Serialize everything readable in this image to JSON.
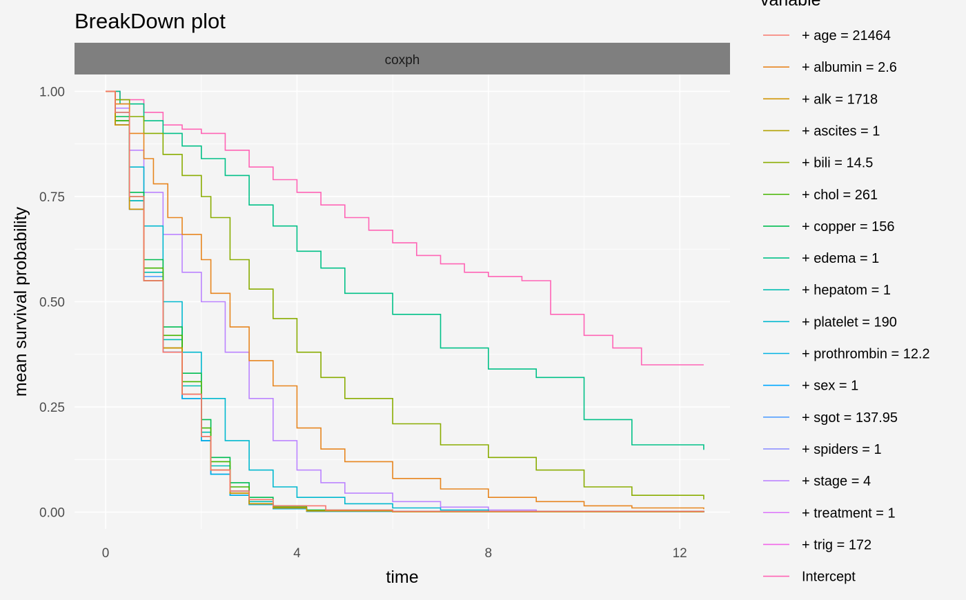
{
  "chart_data": {
    "type": "line",
    "title": "BreakDown plot",
    "facet_label": "coxph",
    "xlabel": "time",
    "ylabel": "mean survival probability",
    "xlim": [
      -0.65,
      13.05
    ],
    "ylim": [
      -0.04,
      1.04
    ],
    "x_ticks": [
      0,
      4,
      8,
      12
    ],
    "x_tick_labels": [
      "0",
      "4",
      "8",
      "12"
    ],
    "y_ticks": [
      0,
      0.25,
      0.5,
      0.75,
      1
    ],
    "y_tick_labels": [
      "0.00",
      "0.25",
      "0.50",
      "0.75",
      "1.00"
    ],
    "grid": true,
    "legend": {
      "title": "variable",
      "position": "right"
    },
    "series": [
      {
        "name": "+ age = 21464",
        "color": "#F8766D",
        "points": [
          [
            0,
            1
          ],
          [
            0.2,
            0.95
          ],
          [
            0.5,
            0.75
          ],
          [
            0.8,
            0.55
          ],
          [
            1.2,
            0.38
          ],
          [
            1.6,
            0.28
          ],
          [
            2.0,
            0.18
          ],
          [
            2.2,
            0.1
          ],
          [
            2.6,
            0.05
          ],
          [
            3.0,
            0.03
          ],
          [
            3.5,
            0.015
          ],
          [
            4.6,
            0.005
          ],
          [
            6.0,
            0.002
          ],
          [
            12.5,
            0
          ]
        ]
      },
      {
        "name": "+ albumin = 2.6",
        "color": "#E7851E",
        "points": [
          [
            0,
            1
          ],
          [
            0.2,
            0.97
          ],
          [
            0.5,
            0.9
          ],
          [
            0.8,
            0.84
          ],
          [
            1.0,
            0.78
          ],
          [
            1.3,
            0.7
          ],
          [
            1.6,
            0.66
          ],
          [
            2.0,
            0.6
          ],
          [
            2.2,
            0.52
          ],
          [
            2.6,
            0.44
          ],
          [
            3.0,
            0.36
          ],
          [
            3.5,
            0.3
          ],
          [
            4.0,
            0.2
          ],
          [
            4.5,
            0.15
          ],
          [
            5.0,
            0.12
          ],
          [
            6.0,
            0.08
          ],
          [
            7.0,
            0.055
          ],
          [
            8.0,
            0.035
          ],
          [
            9.0,
            0.025
          ],
          [
            10.0,
            0.015
          ],
          [
            11.0,
            0.01
          ],
          [
            12.5,
            0.007
          ]
        ]
      },
      {
        "name": "+ alk = 1718",
        "color": "#D09400",
        "points": [
          [
            0,
            1
          ],
          [
            0.2,
            0.92
          ],
          [
            0.5,
            0.72
          ],
          [
            0.8,
            0.55
          ],
          [
            1.2,
            0.39
          ],
          [
            1.6,
            0.28
          ],
          [
            2.0,
            0.18
          ],
          [
            2.2,
            0.1
          ],
          [
            2.6,
            0.045
          ],
          [
            3.0,
            0.02
          ],
          [
            3.5,
            0.01
          ],
          [
            4.2,
            0.003
          ],
          [
            6.0,
            0.001
          ],
          [
            12.5,
            0
          ]
        ]
      },
      {
        "name": "+ ascites = 1",
        "color": "#B2A100",
        "points": [
          [
            0,
            1
          ],
          [
            0.2,
            0.92
          ],
          [
            0.5,
            0.72
          ],
          [
            0.8,
            0.55
          ],
          [
            1.2,
            0.39
          ],
          [
            1.6,
            0.28
          ],
          [
            2.0,
            0.18
          ],
          [
            2.2,
            0.1
          ],
          [
            2.6,
            0.045
          ],
          [
            3.0,
            0.02
          ],
          [
            3.5,
            0.01
          ],
          [
            4.2,
            0.003
          ],
          [
            6.0,
            0.001
          ],
          [
            12.5,
            0
          ]
        ]
      },
      {
        "name": "+ bili = 14.5",
        "color": "#89AC00",
        "points": [
          [
            0,
            1
          ],
          [
            0.2,
            0.98
          ],
          [
            0.5,
            0.94
          ],
          [
            0.8,
            0.9
          ],
          [
            1.2,
            0.85
          ],
          [
            1.6,
            0.8
          ],
          [
            2.0,
            0.75
          ],
          [
            2.2,
            0.7
          ],
          [
            2.6,
            0.6
          ],
          [
            3.0,
            0.53
          ],
          [
            3.5,
            0.46
          ],
          [
            4.0,
            0.38
          ],
          [
            4.5,
            0.32
          ],
          [
            5.0,
            0.27
          ],
          [
            6.0,
            0.21
          ],
          [
            7.0,
            0.16
          ],
          [
            8.0,
            0.13
          ],
          [
            9.0,
            0.1
          ],
          [
            10.0,
            0.06
          ],
          [
            11.0,
            0.04
          ],
          [
            12.5,
            0.03
          ]
        ]
      },
      {
        "name": "+ chol = 261",
        "color": "#45B500",
        "points": [
          [
            0,
            1
          ],
          [
            0.2,
            0.93
          ],
          [
            0.5,
            0.75
          ],
          [
            0.8,
            0.58
          ],
          [
            1.2,
            0.42
          ],
          [
            1.6,
            0.31
          ],
          [
            2.0,
            0.2
          ],
          [
            2.2,
            0.12
          ],
          [
            2.6,
            0.06
          ],
          [
            3.0,
            0.03
          ],
          [
            3.5,
            0.012
          ],
          [
            4.2,
            0.004
          ],
          [
            6.0,
            0.001
          ],
          [
            12.5,
            0
          ]
        ]
      },
      {
        "name": "+ copper = 156",
        "color": "#00BC51",
        "points": [
          [
            0,
            1
          ],
          [
            0.2,
            0.94
          ],
          [
            0.5,
            0.76
          ],
          [
            0.8,
            0.6
          ],
          [
            1.2,
            0.44
          ],
          [
            1.6,
            0.33
          ],
          [
            2.0,
            0.22
          ],
          [
            2.2,
            0.13
          ],
          [
            2.6,
            0.07
          ],
          [
            3.0,
            0.035
          ],
          [
            3.5,
            0.015
          ],
          [
            4.2,
            0.005
          ],
          [
            6.0,
            0.001
          ],
          [
            12.5,
            0
          ]
        ]
      },
      {
        "name": "+ edema = 1",
        "color": "#00C087",
        "points": [
          [
            0,
            1
          ],
          [
            0.3,
            0.97
          ],
          [
            0.8,
            0.93
          ],
          [
            1.2,
            0.9
          ],
          [
            1.6,
            0.87
          ],
          [
            2.0,
            0.84
          ],
          [
            2.5,
            0.8
          ],
          [
            3.0,
            0.73
          ],
          [
            3.5,
            0.68
          ],
          [
            4.0,
            0.62
          ],
          [
            4.5,
            0.58
          ],
          [
            5.0,
            0.52
          ],
          [
            6.0,
            0.47
          ],
          [
            7.0,
            0.39
          ],
          [
            8.0,
            0.34
          ],
          [
            9.0,
            0.32
          ],
          [
            10.0,
            0.22
          ],
          [
            11.0,
            0.16
          ],
          [
            12.5,
            0.148
          ]
        ]
      },
      {
        "name": "+ hepatom = 1",
        "color": "#00BDB2",
        "points": [
          [
            0,
            1
          ],
          [
            0.2,
            0.93
          ],
          [
            0.5,
            0.74
          ],
          [
            0.8,
            0.57
          ],
          [
            1.2,
            0.41
          ],
          [
            1.6,
            0.3
          ],
          [
            2.0,
            0.19
          ],
          [
            2.2,
            0.11
          ],
          [
            2.6,
            0.05
          ],
          [
            3.0,
            0.025
          ],
          [
            3.5,
            0.01
          ],
          [
            4.2,
            0.003
          ],
          [
            6.0,
            0.001
          ],
          [
            12.5,
            0
          ]
        ]
      },
      {
        "name": "+ platelet = 190",
        "color": "#00B8CF",
        "points": [
          [
            0,
            1
          ],
          [
            0.2,
            0.95
          ],
          [
            0.5,
            0.82
          ],
          [
            0.8,
            0.68
          ],
          [
            1.2,
            0.5
          ],
          [
            1.6,
            0.38
          ],
          [
            2.0,
            0.27
          ],
          [
            2.5,
            0.17
          ],
          [
            3.0,
            0.1
          ],
          [
            3.5,
            0.06
          ],
          [
            4.0,
            0.035
          ],
          [
            5.0,
            0.02
          ],
          [
            6.0,
            0.01
          ],
          [
            7.0,
            0.005
          ],
          [
            8.0,
            0.002
          ],
          [
            12.5,
            0
          ]
        ]
      },
      {
        "name": "+ prothrombin = 12.2",
        "color": "#00B2E3",
        "points": [
          [
            0,
            1
          ],
          [
            0.2,
            0.92
          ],
          [
            0.5,
            0.72
          ],
          [
            0.8,
            0.55
          ],
          [
            1.2,
            0.38
          ],
          [
            1.6,
            0.27
          ],
          [
            2.0,
            0.17
          ],
          [
            2.2,
            0.09
          ],
          [
            2.6,
            0.04
          ],
          [
            3.0,
            0.018
          ],
          [
            3.5,
            0.008
          ],
          [
            4.2,
            0.002
          ],
          [
            12.5,
            0
          ]
        ]
      },
      {
        "name": "+ sex = 1",
        "color": "#00A8FF",
        "points": [
          [
            0,
            1
          ],
          [
            0.2,
            0.92
          ],
          [
            0.5,
            0.72
          ],
          [
            0.8,
            0.55
          ],
          [
            1.2,
            0.38
          ],
          [
            1.6,
            0.27
          ],
          [
            2.0,
            0.17
          ],
          [
            2.2,
            0.09
          ],
          [
            2.6,
            0.04
          ],
          [
            3.0,
            0.018
          ],
          [
            3.5,
            0.008
          ],
          [
            4.2,
            0.002
          ],
          [
            12.5,
            0
          ]
        ]
      },
      {
        "name": "+ sgot = 137.95",
        "color": "#529EFF",
        "points": [
          [
            0,
            1
          ],
          [
            0.2,
            0.93
          ],
          [
            0.5,
            0.74
          ],
          [
            0.8,
            0.56
          ],
          [
            1.2,
            0.39
          ],
          [
            1.6,
            0.28
          ],
          [
            2.0,
            0.18
          ],
          [
            2.2,
            0.1
          ],
          [
            2.6,
            0.045
          ],
          [
            3.0,
            0.02
          ],
          [
            3.5,
            0.009
          ],
          [
            4.2,
            0.002
          ],
          [
            12.5,
            0
          ]
        ]
      },
      {
        "name": "+ spiders = 1",
        "color": "#8F91FF",
        "points": [
          [
            0,
            1
          ],
          [
            0.2,
            0.92
          ],
          [
            0.5,
            0.72
          ],
          [
            0.8,
            0.55
          ],
          [
            1.2,
            0.38
          ],
          [
            1.6,
            0.27
          ],
          [
            2.0,
            0.17
          ],
          [
            2.2,
            0.09
          ],
          [
            2.6,
            0.04
          ],
          [
            3.0,
            0.018
          ],
          [
            3.5,
            0.008
          ],
          [
            4.2,
            0.002
          ],
          [
            12.5,
            0
          ]
        ]
      },
      {
        "name": "+ stage = 4",
        "color": "#BB83FF",
        "points": [
          [
            0,
            1
          ],
          [
            0.2,
            0.96
          ],
          [
            0.5,
            0.86
          ],
          [
            0.8,
            0.76
          ],
          [
            1.2,
            0.66
          ],
          [
            1.6,
            0.57
          ],
          [
            2.0,
            0.5
          ],
          [
            2.5,
            0.38
          ],
          [
            3.0,
            0.27
          ],
          [
            3.5,
            0.17
          ],
          [
            4.0,
            0.1
          ],
          [
            4.5,
            0.07
          ],
          [
            5.0,
            0.045
          ],
          [
            6.0,
            0.025
          ],
          [
            7.0,
            0.012
          ],
          [
            8.0,
            0.005
          ],
          [
            9.0,
            0.002
          ],
          [
            12.5,
            0.001
          ]
        ]
      },
      {
        "name": "+ treatment = 1",
        "color": "#DB72FB",
        "points": [
          [
            0,
            1
          ],
          [
            0.2,
            0.92
          ],
          [
            0.5,
            0.72
          ],
          [
            0.8,
            0.55
          ],
          [
            1.2,
            0.38
          ],
          [
            1.6,
            0.27
          ],
          [
            2.0,
            0.17
          ],
          [
            2.2,
            0.09
          ],
          [
            2.6,
            0.04
          ],
          [
            3.0,
            0.018
          ],
          [
            3.5,
            0.008
          ],
          [
            4.2,
            0.002
          ],
          [
            12.5,
            0
          ]
        ]
      },
      {
        "name": "+ trig = 172",
        "color": "#F265E8",
        "points": [
          [
            0,
            1
          ],
          [
            0.2,
            0.92
          ],
          [
            0.5,
            0.72
          ],
          [
            0.8,
            0.55
          ],
          [
            1.2,
            0.38
          ],
          [
            1.6,
            0.27
          ],
          [
            2.0,
            0.17
          ],
          [
            2.2,
            0.09
          ],
          [
            2.6,
            0.04
          ],
          [
            3.0,
            0.018
          ],
          [
            3.5,
            0.008
          ],
          [
            4.2,
            0.002
          ],
          [
            12.5,
            0
          ]
        ]
      },
      {
        "name": "Intercept",
        "color": "#FF63B5",
        "points": [
          [
            0,
            1
          ],
          [
            0.3,
            0.98
          ],
          [
            0.8,
            0.95
          ],
          [
            1.2,
            0.92
          ],
          [
            1.6,
            0.91
          ],
          [
            2.0,
            0.9
          ],
          [
            2.5,
            0.86
          ],
          [
            3.0,
            0.82
          ],
          [
            3.5,
            0.79
          ],
          [
            4.0,
            0.76
          ],
          [
            4.5,
            0.73
          ],
          [
            5.0,
            0.7
          ],
          [
            5.5,
            0.67
          ],
          [
            6.0,
            0.64
          ],
          [
            6.5,
            0.61
          ],
          [
            7.0,
            0.59
          ],
          [
            7.5,
            0.57
          ],
          [
            8.0,
            0.56
          ],
          [
            8.7,
            0.55
          ],
          [
            9.3,
            0.47
          ],
          [
            10.0,
            0.42
          ],
          [
            10.6,
            0.39
          ],
          [
            11.2,
            0.35
          ],
          [
            12.5,
            0.35
          ]
        ]
      }
    ]
  }
}
